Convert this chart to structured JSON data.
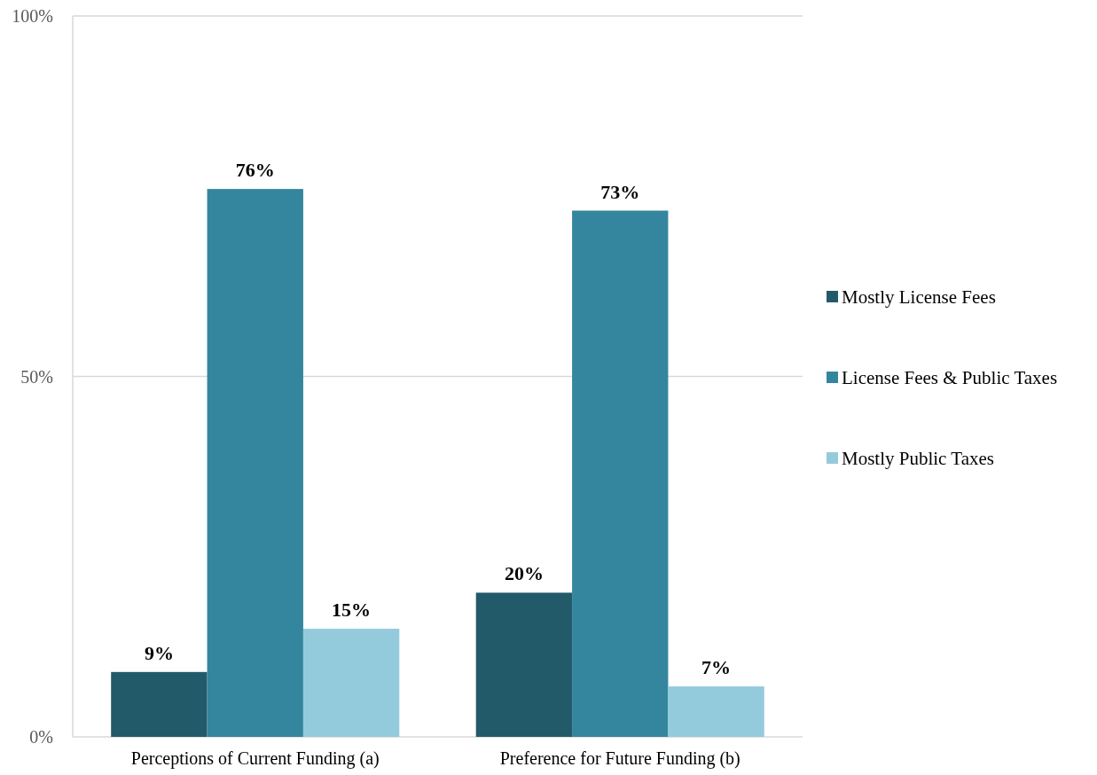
{
  "chart_data": {
    "type": "bar",
    "categories": [
      "Perceptions of Current Funding (a)",
      "Preference for Future Funding (b)"
    ],
    "series": [
      {
        "name": "Mostly License Fees",
        "color": "#235a6a",
        "values": [
          9,
          20
        ],
        "value_labels": [
          "9%",
          "20%"
        ]
      },
      {
        "name": "License Fees & Public Taxes",
        "color": "#33869e",
        "values": [
          76,
          73
        ],
        "value_labels": [
          "76%",
          "73%"
        ]
      },
      {
        "name": "Mostly Public Taxes",
        "color": "#94cbdc",
        "values": [
          15,
          7
        ],
        "value_labels": [
          "15%",
          "7%"
        ]
      }
    ],
    "ylim": [
      0,
      100
    ],
    "yticks": [
      {
        "value": 0,
        "label": "0%"
      },
      {
        "value": 50,
        "label": "50%"
      },
      {
        "value": 100,
        "label": "100%"
      }
    ],
    "grid": "y",
    "legend": "right"
  }
}
